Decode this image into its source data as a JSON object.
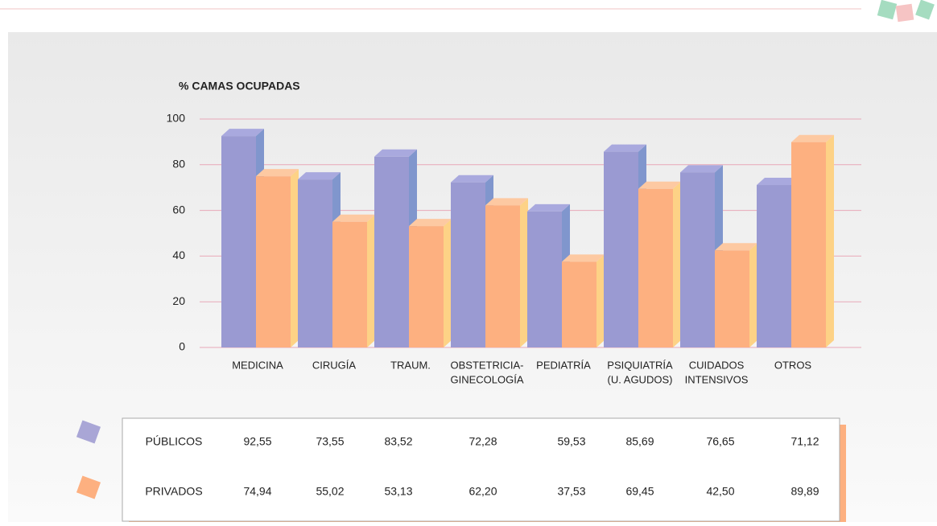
{
  "chart_data": {
    "type": "bar3d",
    "title": "% CAMAS OCUPADAS",
    "categories": [
      [
        "MEDICINA"
      ],
      [
        "CIRUGÍA"
      ],
      [
        "TRAUM."
      ],
      [
        "OBSTETRICIA-",
        "GINECOLOGÍA"
      ],
      [
        "PEDIATRÍA"
      ],
      [
        "PSIQUIATRÍA",
        "(U. AGUDOS)"
      ],
      [
        "CUIDADOS",
        "INTENSIVOS"
      ],
      [
        "OTROS"
      ]
    ],
    "series": [
      {
        "name": "PÚBLICOS",
        "color": "#9a9ad2",
        "values": [
          92.55,
          73.55,
          83.52,
          72.28,
          59.53,
          85.69,
          76.65,
          71.12
        ],
        "value_labels": [
          "92,55",
          "73,55",
          "83,52",
          "72,28",
          "59,53",
          "85,69",
          "76,65",
          "71,12"
        ]
      },
      {
        "name": "PRIVADOS",
        "color": "#fdb080",
        "values": [
          74.94,
          55.02,
          53.13,
          62.2,
          37.53,
          69.45,
          42.5,
          89.89
        ],
        "value_labels": [
          "74,94",
          "55,02",
          "53,13",
          "62,20",
          "37,53",
          "69,45",
          "42,50",
          "89,89"
        ]
      }
    ],
    "ylim": [
      0,
      100
    ],
    "yticks": [
      0,
      20,
      40,
      60,
      80,
      100
    ],
    "grid": true
  }
}
